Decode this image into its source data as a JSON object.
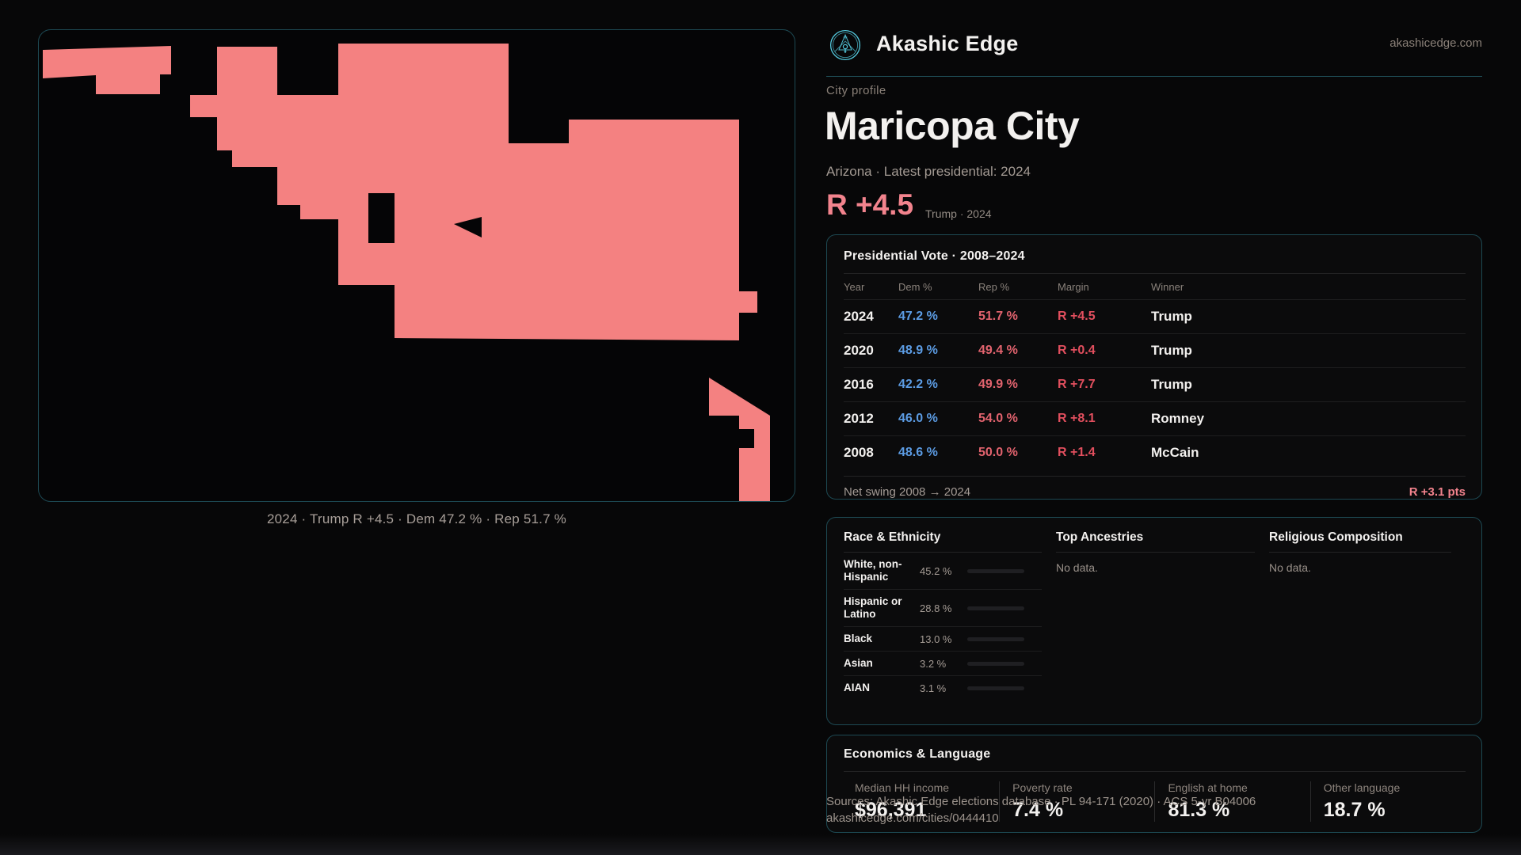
{
  "site": {
    "brand": "Akashic Edge",
    "domain": "akashicedge.com",
    "accent_teal": "#54c8dc"
  },
  "profile": {
    "kicker": "City profile",
    "city": "Maricopa City",
    "subtitle": "Arizona · Latest presidential: 2024",
    "headline_margin": "R +4.5",
    "headline_note": "Trump · 2024",
    "margin_color": "#f2838d"
  },
  "map": {
    "caption": "2024 · Trump R +4.5 · Dem 47.2 % · Rep 51.7 %",
    "fill": "#f48181",
    "border": "#1d4953"
  },
  "vote_card": {
    "title": "Presidential Vote · 2008–2024",
    "columns": {
      "year": "Year",
      "dem": "Dem %",
      "rep": "Rep %",
      "margin": "Margin",
      "winner": "Winner"
    },
    "rows": [
      {
        "year": "2024",
        "dem": "47.2 %",
        "rep": "51.7 %",
        "margin": "R +4.5",
        "winner": "Trump"
      },
      {
        "year": "2020",
        "dem": "48.9 %",
        "rep": "49.4 %",
        "margin": "R +0.4",
        "winner": "Trump"
      },
      {
        "year": "2016",
        "dem": "42.2 %",
        "rep": "49.9 %",
        "margin": "R +7.7",
        "winner": "Trump"
      },
      {
        "year": "2012",
        "dem": "46.0 %",
        "rep": "54.0 %",
        "margin": "R +8.1",
        "winner": "Romney"
      },
      {
        "year": "2008",
        "dem": "48.6 %",
        "rep": "50.0 %",
        "margin": "R +1.4",
        "winner": "McCain"
      }
    ],
    "footer_label": "Net swing 2008 → 2024",
    "footer_value": "R +3.1 pts",
    "dem_color": "#5c9ce4",
    "rep_color": "#e2636e"
  },
  "demo_card": {
    "race": {
      "title": "Race & Ethnicity",
      "rows": [
        {
          "label": "White, non-Hispanic",
          "pct": "45.2 %",
          "value": 45.2,
          "color": "#93a5c6"
        },
        {
          "label": "Hispanic or Latino",
          "pct": "28.8 %",
          "value": 28.8,
          "color": "#eaa12b"
        },
        {
          "label": "Black",
          "pct": "13.0 %",
          "value": 13.0,
          "color": "#a78bfa"
        },
        {
          "label": "Asian",
          "pct": "3.2 %",
          "value": 3.2,
          "color": "#2cc392"
        },
        {
          "label": "AIAN",
          "pct": "3.1 %",
          "value": 3.1,
          "color": "#dd8411"
        }
      ]
    },
    "ancestries": {
      "title": "Top Ancestries",
      "empty": "No data."
    },
    "religion": {
      "title": "Religious Composition",
      "empty": "No data."
    }
  },
  "econ_card": {
    "title": "Economics & Language",
    "stats": [
      {
        "label": "Median HH income",
        "value": "$96,391"
      },
      {
        "label": "Poverty rate",
        "value": "7.4 %"
      },
      {
        "label": "English at home",
        "value": "81.3 %"
      },
      {
        "label": "Other language",
        "value": "18.7 %"
      }
    ]
  },
  "footer": {
    "sources": "Sources: Akashic Edge elections database · PL 94-171 (2020) · ACS 5-yr B04006",
    "permalink": "akashicedge.com/cities/0444410"
  }
}
